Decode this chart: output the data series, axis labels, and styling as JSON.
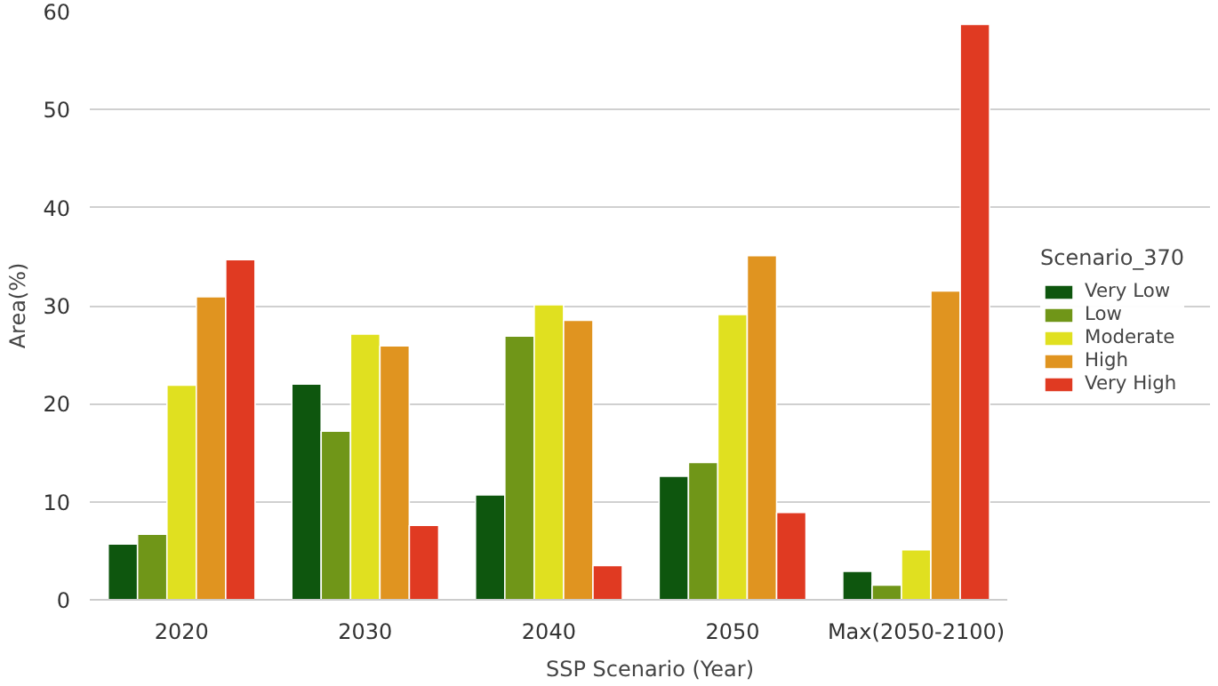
{
  "chart_data": {
    "type": "bar",
    "xlabel": "SSP Scenario (Year)",
    "ylabel": "Area(%)",
    "legend_title": "Scenario_370",
    "categories": [
      "2020",
      "2030",
      "2040",
      "2050",
      "Max(2050-2100)"
    ],
    "series": [
      {
        "name": "Very Low",
        "color": "#0e560e",
        "values": [
          5.7,
          22.0,
          10.7,
          12.6,
          2.9
        ]
      },
      {
        "name": "Low",
        "color": "#709618",
        "values": [
          6.7,
          17.2,
          26.9,
          14.0,
          1.5
        ]
      },
      {
        "name": "Moderate",
        "color": "#e0e020",
        "values": [
          21.9,
          27.1,
          30.1,
          29.1,
          5.1
        ]
      },
      {
        "name": "High",
        "color": "#e09420",
        "values": [
          30.9,
          25.9,
          28.5,
          35.1,
          31.5
        ]
      },
      {
        "name": "Very High",
        "color": "#e03a22",
        "values": [
          34.7,
          7.6,
          3.5,
          8.9,
          58.7
        ]
      }
    ],
    "ylim": [
      0,
      60
    ],
    "yticks": [
      0,
      10,
      20,
      30,
      40,
      50,
      60
    ],
    "grid": "y",
    "legend": "right"
  }
}
